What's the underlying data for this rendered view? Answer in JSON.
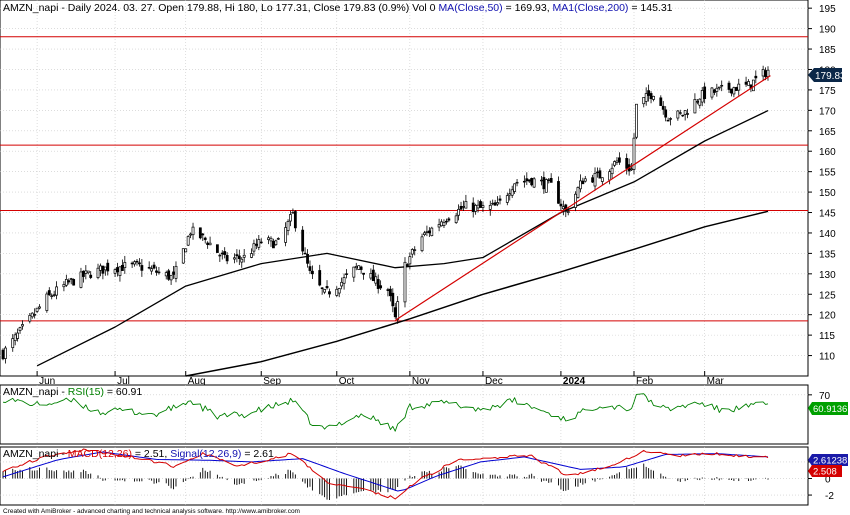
{
  "colors": {
    "background": "#ffffff",
    "grid": "#c8c8c8",
    "frame": "#000000",
    "candle": "#000000",
    "ma50": "#000000",
    "ma200": "#000000",
    "horizontal_lines": "#d40000",
    "trendline": "#d40000",
    "rsi": "#008000",
    "macd": "#d40000",
    "signal": "#0000d0",
    "histogram": "#000000",
    "price_badge": "#0b2748",
    "rsi_badge": "#00a000",
    "macd_badge": "#d40000",
    "signal_badge": "#1a1aa8"
  },
  "header": {
    "price_prefix": "AMZN_napi - Daily 2024. 03. 27. Open 179.88, Hi 180, Lo 177.31, Close 179.83 (0.9%) Vol 0 ",
    "ma50_label": "MA(Close,50)",
    "ma50_value": " = 169.93, ",
    "ma200_label": "MA1(Close,200)",
    "ma200_value": " = 145.31",
    "rsi_prefix": "AMZN_napi - ",
    "rsi_label": "RSI(15)",
    "rsi_value": " = 60.91",
    "macd_prefix": "AMZN_napi - ",
    "macd_label": "MACD(12,26)",
    "macd_value": " = 2.51, ",
    "signal_label": "Signal(12,26,9)",
    "signal_value": " = 2.61"
  },
  "badges": {
    "price": "179.83",
    "rsi": "60.9136",
    "macd": "2.508",
    "signal": "2.61238"
  },
  "footer": "Created with AmiBroker - advanced charting and technical analysis software. http://www.amibroker.com",
  "chart_data": [
    {
      "type": "candlestick",
      "panel": "price",
      "title": "AMZN_napi - Daily 2024. 03. 27.",
      "ylim": [
        105,
        197
      ],
      "y_ticks": [
        110,
        115,
        120,
        125,
        130,
        135,
        140,
        145,
        150,
        155,
        160,
        165,
        170,
        175,
        180,
        185,
        190,
        195
      ],
      "x_tick_labels": [
        "Jun",
        "Jul",
        "Aug",
        "Sep",
        "Oct",
        "Nov",
        "Dec",
        "2024",
        "Feb",
        "Mar"
      ],
      "x_tick_dates": [
        "2023-06-01",
        "2023-07-03",
        "2023-08-01",
        "2023-09-01",
        "2023-10-02",
        "2023-11-01",
        "2023-12-01",
        "2024-01-02",
        "2024-02-01",
        "2024-03-01"
      ],
      "x_range": [
        "2023-05-18",
        "2024-03-27"
      ],
      "grid": true,
      "close_key_points": [
        [
          "2023-05-18",
          110.5
        ],
        [
          "2023-05-26",
          116.5
        ],
        [
          "2023-06-05",
          124.0
        ],
        [
          "2023-06-13",
          127.5
        ],
        [
          "2023-06-22",
          130.0
        ],
        [
          "2023-06-30",
          131.5
        ],
        [
          "2023-07-12",
          132.0
        ],
        [
          "2023-07-20",
          130.5
        ],
        [
          "2023-07-27",
          129.0
        ],
        [
          "2023-08-03",
          140.5
        ],
        [
          "2023-08-10",
          138.0
        ],
        [
          "2023-08-17",
          133.5
        ],
        [
          "2023-08-25",
          134.0
        ],
        [
          "2023-09-01",
          138.0
        ],
        [
          "2023-09-08",
          137.5
        ],
        [
          "2023-09-14",
          144.5
        ],
        [
          "2023-09-21",
          130.0
        ],
        [
          "2023-09-27",
          125.0
        ],
        [
          "2023-10-04",
          128.0
        ],
        [
          "2023-10-11",
          132.0
        ],
        [
          "2023-10-18",
          128.0
        ],
        [
          "2023-10-23",
          126.0
        ],
        [
          "2023-10-26",
          119.0
        ],
        [
          "2023-10-30",
          132.0
        ],
        [
          "2023-11-06",
          139.0
        ],
        [
          "2023-11-15",
          143.5
        ],
        [
          "2023-11-24",
          146.5
        ],
        [
          "2023-11-30",
          146.0
        ],
        [
          "2023-12-07",
          146.5
        ],
        [
          "2023-12-14",
          152.5
        ],
        [
          "2023-12-21",
          153.0
        ],
        [
          "2023-12-29",
          151.5
        ],
        [
          "2024-01-04",
          145.0
        ],
        [
          "2024-01-11",
          153.0
        ],
        [
          "2024-01-18",
          154.0
        ],
        [
          "2024-01-25",
          157.5
        ],
        [
          "2024-01-31",
          155.5
        ],
        [
          "2024-02-02",
          171.0
        ],
        [
          "2024-02-09",
          174.5
        ],
        [
          "2024-02-15",
          168.5
        ],
        [
          "2024-02-21",
          169.0
        ],
        [
          "2024-02-28",
          173.5
        ],
        [
          "2024-03-05",
          174.5
        ],
        [
          "2024-03-12",
          175.5
        ],
        [
          "2024-03-19",
          176.0
        ],
        [
          "2024-03-27",
          179.83
        ]
      ],
      "ma50": [
        [
          "2023-06-01",
          107.5
        ],
        [
          "2023-07-03",
          117.0
        ],
        [
          "2023-08-01",
          127.0
        ],
        [
          "2023-09-01",
          132.5
        ],
        [
          "2023-09-28",
          135.0
        ],
        [
          "2023-10-26",
          131.5
        ],
        [
          "2023-11-15",
          132.5
        ],
        [
          "2023-12-01",
          134.0
        ],
        [
          "2024-01-02",
          145.0
        ],
        [
          "2024-02-01",
          152.5
        ],
        [
          "2024-03-01",
          162.5
        ],
        [
          "2024-03-27",
          169.93
        ]
      ],
      "ma200": [
        [
          "2023-08-01",
          105.0
        ],
        [
          "2023-09-01",
          108.5
        ],
        [
          "2023-10-02",
          113.5
        ],
        [
          "2023-11-01",
          119.0
        ],
        [
          "2023-12-01",
          125.0
        ],
        [
          "2024-01-02",
          130.5
        ],
        [
          "2024-02-01",
          136.0
        ],
        [
          "2024-03-01",
          141.5
        ],
        [
          "2024-03-27",
          145.31
        ]
      ],
      "horizontal_lines": [
        188.0,
        161.5,
        145.5,
        118.5
      ],
      "trendline": [
        [
          "2023-10-26",
          118.6
        ],
        [
          "2024-03-28",
          178.5
        ]
      ]
    },
    {
      "type": "line",
      "panel": "rsi",
      "series": [
        {
          "name": "RSI(15)",
          "last": 60.91
        }
      ],
      "ylim": [
        20,
        80
      ],
      "y_ticks": [
        70
      ],
      "values": [
        [
          "2023-05-18",
          66
        ],
        [
          "2023-06-01",
          60
        ],
        [
          "2023-06-15",
          64
        ],
        [
          "2023-06-27",
          52
        ],
        [
          "2023-07-06",
          54
        ],
        [
          "2023-07-20",
          50
        ],
        [
          "2023-08-03",
          64
        ],
        [
          "2023-08-14",
          48
        ],
        [
          "2023-08-25",
          50
        ],
        [
          "2023-09-14",
          64
        ],
        [
          "2023-09-22",
          40
        ],
        [
          "2023-09-27",
          35
        ],
        [
          "2023-10-06",
          44
        ],
        [
          "2023-10-12",
          50
        ],
        [
          "2023-10-19",
          44
        ],
        [
          "2023-10-26",
          34
        ],
        [
          "2023-11-01",
          58
        ],
        [
          "2023-11-15",
          62
        ],
        [
          "2023-11-30",
          55
        ],
        [
          "2023-12-14",
          64
        ],
        [
          "2024-01-04",
          45
        ],
        [
          "2024-01-18",
          60
        ],
        [
          "2024-01-31",
          56
        ],
        [
          "2024-02-02",
          72
        ],
        [
          "2024-02-14",
          55
        ],
        [
          "2024-02-28",
          62
        ],
        [
          "2024-03-08",
          54
        ],
        [
          "2024-03-19",
          58
        ],
        [
          "2024-03-27",
          60.91
        ]
      ]
    },
    {
      "type": "line",
      "panel": "macd",
      "series": [
        {
          "name": "MACD(12,26)",
          "last": 2.51
        },
        {
          "name": "Signal(12,26,9)",
          "last": 2.61
        }
      ],
      "ylim": [
        -3.2,
        3.8
      ],
      "y_ticks": [
        2,
        0,
        -2
      ],
      "macd": [
        [
          "2023-05-18",
          1.0
        ],
        [
          "2023-06-06",
          2.8
        ],
        [
          "2023-06-20",
          3.5
        ],
        [
          "2023-07-10",
          2.6
        ],
        [
          "2023-07-27",
          1.5
        ],
        [
          "2023-08-08",
          3.0
        ],
        [
          "2023-08-23",
          1.5
        ],
        [
          "2023-09-14",
          3.0
        ],
        [
          "2023-09-28",
          -0.5
        ],
        [
          "2023-10-10",
          -1.0
        ],
        [
          "2023-10-26",
          -2.4
        ],
        [
          "2023-11-03",
          -0.5
        ],
        [
          "2023-11-20",
          2.2
        ],
        [
          "2023-12-07",
          2.5
        ],
        [
          "2023-12-20",
          2.8
        ],
        [
          "2024-01-05",
          0.3
        ],
        [
          "2024-01-22",
          1.5
        ],
        [
          "2024-02-05",
          3.3
        ],
        [
          "2024-02-20",
          2.8
        ],
        [
          "2024-03-05",
          3.0
        ],
        [
          "2024-03-27",
          2.51
        ]
      ],
      "signal": [
        [
          "2023-05-18",
          0.2
        ],
        [
          "2023-06-10",
          2.3
        ],
        [
          "2023-06-28",
          3.2
        ],
        [
          "2023-07-20",
          2.3
        ],
        [
          "2023-08-10",
          2.2
        ],
        [
          "2023-08-28",
          2.0
        ],
        [
          "2023-09-18",
          2.4
        ],
        [
          "2023-10-05",
          0.6
        ],
        [
          "2023-10-28",
          -1.6
        ],
        [
          "2023-11-12",
          0.3
        ],
        [
          "2023-11-30",
          2.0
        ],
        [
          "2023-12-18",
          2.6
        ],
        [
          "2024-01-10",
          1.1
        ],
        [
          "2024-01-28",
          1.4
        ],
        [
          "2024-02-14",
          2.9
        ],
        [
          "2024-03-06",
          3.0
        ],
        [
          "2024-03-27",
          2.61
        ]
      ]
    }
  ]
}
